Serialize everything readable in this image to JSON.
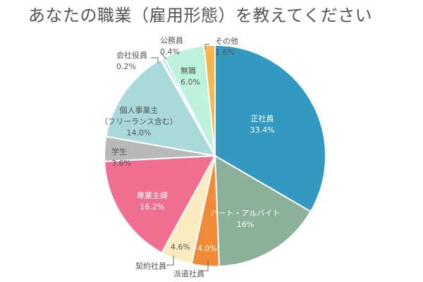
{
  "chart_data": {
    "type": "pie",
    "title": "あなたの職業（雇用形態）を教えてください",
    "slices": [
      {
        "label": "正社員",
        "value": 33.4,
        "value_text": "33.4%",
        "color": "#3399C1",
        "text_color": "#ffffff"
      },
      {
        "label": "パート・アルバイト",
        "value": 16.0,
        "value_text": "16%",
        "color": "#8CB19B",
        "text_color": "#ffffff"
      },
      {
        "label": "派遣社員",
        "value": 4.0,
        "value_text": "4.0%",
        "color": "#F08A38",
        "text_color": "#ffffff"
      },
      {
        "label": "契約社員",
        "value": 4.6,
        "value_text": "4.6%",
        "color": "#FCEBC0",
        "text_color": "#555555"
      },
      {
        "label": "専業主婦",
        "value": 16.2,
        "value_text": "16.2%",
        "color": "#F06F91",
        "text_color": "#ffffff"
      },
      {
        "label": "学生",
        "value": 3.6,
        "value_text": "3.6%",
        "color": "#B8B8B8",
        "text_color": "#555555"
      },
      {
        "label": "個人事業主\n（フリーランス含む）",
        "value": 14.0,
        "value_text": "14.0%",
        "color": "#A9D9D9",
        "text_color": "#555555"
      },
      {
        "label": "会社役員",
        "value": 0.2,
        "value_text": "0.2%",
        "color": "#7FC2CF",
        "text_color": "#555555"
      },
      {
        "label": "公務員",
        "value": 0.4,
        "value_text": "0.4%",
        "color": "#9FDDE8",
        "text_color": "#555555"
      },
      {
        "label": "無職",
        "value": 6.0,
        "value_text": "6.0%",
        "color": "#BFF2DD",
        "text_color": "#555555"
      },
      {
        "label": "その他",
        "value": 1.6,
        "value_text": "1.6%",
        "color": "#F6B84A",
        "text_color": "#555555"
      }
    ]
  }
}
